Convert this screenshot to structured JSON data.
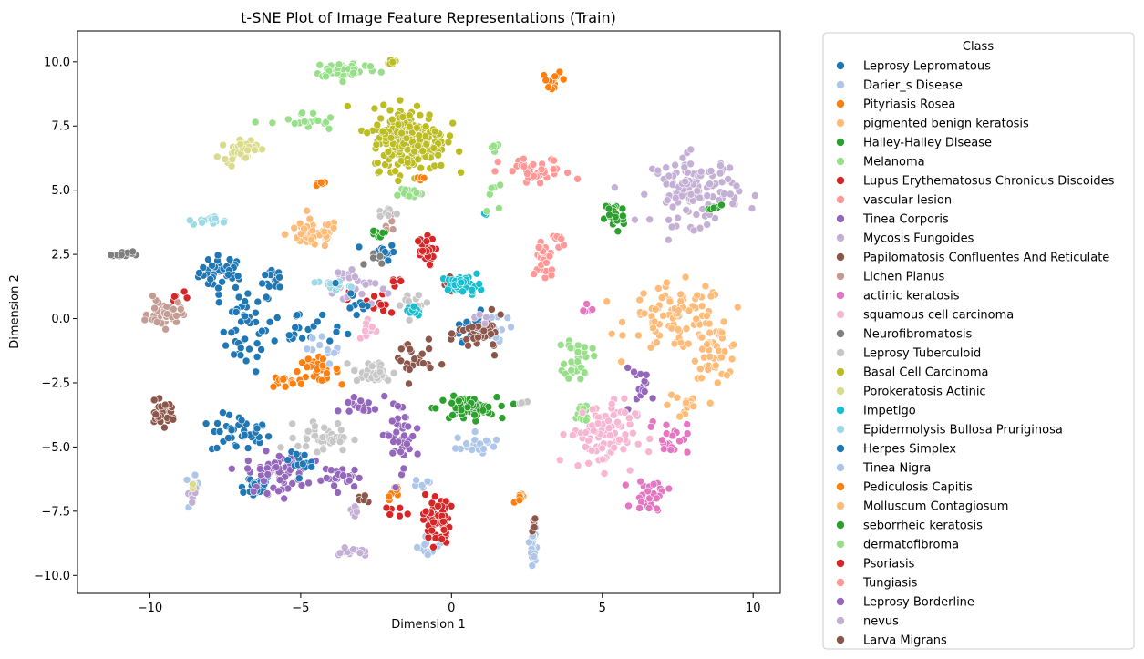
{
  "chart_data": {
    "type": "scatter",
    "title": "t-SNE Plot of Image Feature Representations (Train)",
    "xlabel": "Dimension 1",
    "ylabel": "Dimension 2",
    "xlim": [
      -12.4,
      10.9
    ],
    "ylim": [
      -10.7,
      11.2
    ],
    "xticks": [
      -10,
      -5,
      0,
      5,
      10
    ],
    "yticks": [
      -10.0,
      -7.5,
      -5.0,
      -2.5,
      0.0,
      2.5,
      5.0,
      7.5,
      10.0
    ],
    "xtick_labels": [
      "−10",
      "−5",
      "0",
      "5",
      "10"
    ],
    "ytick_labels": [
      "−10.0",
      "−7.5",
      "−5.0",
      "−2.5",
      "0.0",
      "2.5",
      "5.0",
      "7.5",
      "10.0"
    ],
    "grid": false,
    "legend_title": "Class",
    "legend_position": "outside-right",
    "series": [
      {
        "name": "Leprosy Lepromatous",
        "color": "#1f77b4",
        "clusters": [
          [
            -7.6,
            1.8,
            0.7,
            0.6,
            40
          ],
          [
            -6.8,
            -0.4,
            0.8,
            1.5,
            45
          ],
          [
            -7.0,
            -4.5,
            0.9,
            0.7,
            40
          ],
          [
            -6.6,
            -6.5,
            0.6,
            0.4,
            25
          ],
          [
            -5.8,
            1.6,
            0.4,
            0.5,
            15
          ],
          [
            -2.3,
            2.6,
            0.4,
            0.3,
            15
          ],
          [
            0.7,
            -0.3,
            0.6,
            0.5,
            20
          ]
        ]
      },
      {
        "name": "Darier_s Disease",
        "color": "#aec7e8",
        "clusters": [
          [
            0.8,
            -4.9,
            0.6,
            0.4,
            20
          ],
          [
            2.7,
            -8.8,
            0.08,
            0.7,
            25
          ],
          [
            -0.7,
            -8.8,
            0.4,
            0.5,
            15
          ],
          [
            -8.6,
            -6.6,
            0.2,
            0.4,
            8
          ],
          [
            1.6,
            -0.2,
            0.5,
            1.0,
            10
          ]
        ]
      },
      {
        "name": "Pityriasis Rosea",
        "color": "#ff7f0e",
        "clusters": [
          [
            3.4,
            9.3,
            0.35,
            0.25,
            14
          ],
          [
            -4.5,
            -2.0,
            0.7,
            0.4,
            30
          ],
          [
            2.3,
            -7.0,
            0.2,
            0.15,
            10
          ],
          [
            -1.9,
            -6.8,
            0.2,
            0.4,
            8
          ],
          [
            -4.4,
            5.3,
            0.3,
            0.2,
            6
          ]
        ]
      },
      {
        "name": "pigmented benign keratosis",
        "color": "#ffbb78",
        "clusters": [
          [
            -4.6,
            3.3,
            0.8,
            0.5,
            50
          ],
          [
            7.5,
            0.0,
            1.5,
            1.2,
            90
          ],
          [
            8.8,
            -1.3,
            0.7,
            0.9,
            40
          ]
        ]
      },
      {
        "name": "Hailey-Hailey Disease",
        "color": "#2ca02c",
        "clusters": [
          [
            0.5,
            -3.5,
            0.9,
            0.4,
            70
          ],
          [
            5.4,
            4.0,
            0.3,
            0.6,
            30
          ]
        ]
      },
      {
        "name": "Melanoma",
        "color": "#98df8a",
        "clusters": [
          [
            -3.5,
            9.7,
            1.0,
            0.3,
            45
          ],
          [
            -4.9,
            7.6,
            1.0,
            0.4,
            20
          ],
          [
            4.2,
            -1.5,
            0.4,
            0.8,
            35
          ],
          [
            -1.5,
            4.9,
            0.5,
            0.2,
            12
          ],
          [
            4.3,
            -3.7,
            0.3,
            0.5,
            15
          ]
        ]
      },
      {
        "name": "Lupus Erythematosus Chronicus Discoides",
        "color": "#d62728",
        "clusters": [
          [
            -0.9,
            2.6,
            0.3,
            0.5,
            30
          ],
          [
            -0.5,
            -7.8,
            0.4,
            0.9,
            55
          ],
          [
            -2.5,
            0.6,
            0.8,
            0.6,
            15
          ],
          [
            -9.0,
            0.7,
            0.3,
            0.3,
            5
          ]
        ]
      },
      {
        "name": "vascular lesion",
        "color": "#ff9896",
        "clusters": [
          [
            2.8,
            5.7,
            1.1,
            0.5,
            35
          ],
          [
            3.1,
            2.3,
            0.3,
            0.8,
            30
          ]
        ]
      },
      {
        "name": "Tinea Corporis",
        "color": "#9467bd",
        "clusters": [
          [
            -5.8,
            -6.0,
            0.9,
            0.7,
            60
          ],
          [
            -1.7,
            -4.5,
            0.6,
            1.2,
            40
          ],
          [
            -3.6,
            -6.2,
            0.6,
            0.4,
            25
          ],
          [
            6.3,
            -2.6,
            0.6,
            0.6,
            15
          ]
        ]
      },
      {
        "name": "Mycosis Fungoides",
        "color": "#c5b0d5",
        "clusters": [
          [
            8.1,
            5.0,
            1.3,
            1.2,
            120
          ],
          [
            -3.3,
            -9.1,
            0.4,
            0.15,
            15
          ],
          [
            -3.3,
            1.3,
            0.8,
            0.8,
            25
          ],
          [
            -8.6,
            -6.9,
            0.2,
            0.2,
            6
          ]
        ]
      },
      {
        "name": "Papilomatosis Confluentes And Reticulate",
        "color": "#8c564b",
        "clusters": [
          [
            -9.6,
            -3.7,
            0.4,
            0.4,
            35
          ],
          [
            1.0,
            -0.6,
            0.7,
            0.6,
            40
          ],
          [
            -1.3,
            -1.6,
            0.6,
            0.8,
            25
          ],
          [
            -0.1,
            1.2,
            0.3,
            0.3,
            10
          ]
        ]
      },
      {
        "name": "Lichen Planus",
        "color": "#c49c94",
        "clusters": [
          [
            -9.5,
            0.2,
            0.5,
            0.5,
            45
          ],
          [
            -2.0,
            3.8,
            0.3,
            0.3,
            6
          ]
        ]
      },
      {
        "name": "actinic keratosis",
        "color": "#e377c2",
        "clusters": [
          [
            6.6,
            -6.9,
            0.5,
            0.6,
            30
          ],
          [
            7.2,
            -4.6,
            0.6,
            0.6,
            20
          ],
          [
            4.5,
            0.4,
            0.3,
            0.2,
            5
          ]
        ]
      },
      {
        "name": "squamous cell carcinoma",
        "color": "#f7b6d2",
        "clusters": [
          [
            5.0,
            -4.5,
            1.0,
            1.2,
            90
          ],
          [
            -2.8,
            -0.6,
            0.3,
            0.6,
            10
          ]
        ]
      },
      {
        "name": "Neurofibromatosis",
        "color": "#7f7f7f",
        "clusters": [
          [
            -10.9,
            2.5,
            0.3,
            0.1,
            14
          ],
          [
            -2.6,
            2.2,
            0.3,
            0.3,
            6
          ]
        ]
      },
      {
        "name": "Leprosy Tuberculoid",
        "color": "#c7c7c7",
        "clusters": [
          [
            -2.6,
            -2.1,
            0.6,
            0.4,
            40
          ],
          [
            -4.2,
            -4.6,
            0.8,
            0.5,
            40
          ],
          [
            -2.1,
            4.1,
            0.3,
            0.2,
            8
          ],
          [
            -1.3,
            0.6,
            0.5,
            0.5,
            15
          ],
          [
            2.3,
            -3.2,
            0.2,
            0.2,
            4
          ]
        ]
      },
      {
        "name": "Basal Cell Carcinoma",
        "color": "#bcbd22",
        "clusters": [
          [
            -1.4,
            7.0,
            1.1,
            1.1,
            260
          ],
          [
            -2.0,
            10.0,
            0.2,
            0.1,
            10
          ]
        ]
      },
      {
        "name": "Porokeratosis Actinic",
        "color": "#dbdb8d",
        "clusters": [
          [
            -7.0,
            6.6,
            0.5,
            0.4,
            40
          ],
          [
            -8.6,
            -6.5,
            0.1,
            0.1,
            2
          ]
        ]
      },
      {
        "name": "Impetigo",
        "color": "#17becf",
        "clusters": [
          [
            0.4,
            1.3,
            0.5,
            0.3,
            45
          ],
          [
            -1.3,
            0.3,
            0.3,
            0.2,
            10
          ],
          [
            1.2,
            4.1,
            0.1,
            0.1,
            2
          ]
        ]
      },
      {
        "name": "Epidermolysis Bullosa Pruriginosa",
        "color": "#9edae5",
        "clusters": [
          [
            -8.0,
            3.8,
            0.5,
            0.15,
            18
          ],
          [
            -4.0,
            1.3,
            0.6,
            0.2,
            15
          ]
        ]
      },
      {
        "name": "Herpes Simplex",
        "color": "#1f77b4",
        "clusters": [
          [
            -4.8,
            -0.4,
            1.0,
            0.6,
            20
          ],
          [
            -5.1,
            -5.6,
            0.4,
            0.5,
            15
          ],
          [
            -3.3,
            0.6,
            0.5,
            0.4,
            10
          ]
        ]
      },
      {
        "name": "Tinea Nigra",
        "color": "#aec7e8",
        "clusters": [
          [
            -4.1,
            -1.2,
            0.6,
            0.4,
            12
          ],
          [
            -0.9,
            -6.4,
            0.3,
            0.2,
            6
          ]
        ]
      },
      {
        "name": "Pediculosis Capitis",
        "color": "#ff7f0e",
        "clusters": [
          [
            -5.6,
            -2.5,
            0.4,
            0.2,
            12
          ],
          [
            -1.0,
            5.5,
            0.2,
            0.2,
            4
          ]
        ]
      },
      {
        "name": "Molluscum Contagiosum",
        "color": "#ffbb78",
        "clusters": [
          [
            7.7,
            -3.4,
            0.5,
            0.6,
            15
          ]
        ]
      },
      {
        "name": "seborrheic keratosis",
        "color": "#2ca02c",
        "clusters": [
          [
            -2.5,
            3.3,
            0.3,
            0.2,
            8
          ],
          [
            8.8,
            4.3,
            0.3,
            0.3,
            6
          ]
        ]
      },
      {
        "name": "dermatofibroma",
        "color": "#98df8a",
        "clusters": [
          [
            1.2,
            5.0,
            0.3,
            0.5,
            6
          ],
          [
            1.4,
            6.6,
            0.3,
            0.4,
            5
          ]
        ]
      },
      {
        "name": "Psoriasis",
        "color": "#d62728",
        "clusters": [
          [
            -2.0,
            -7.5,
            0.3,
            0.2,
            6
          ],
          [
            -1.9,
            1.5,
            0.2,
            0.2,
            5
          ]
        ]
      },
      {
        "name": "Tungiasis",
        "color": "#ff9896",
        "clusters": [
          [
            3.5,
            3.0,
            0.3,
            0.3,
            6
          ]
        ]
      },
      {
        "name": "Leprosy Borderline",
        "color": "#9467bd",
        "clusters": [
          [
            -3.1,
            -3.4,
            0.6,
            0.4,
            15
          ]
        ]
      },
      {
        "name": "nevus",
        "color": "#c5b0d5",
        "clusters": [
          [
            -3.2,
            -7.5,
            0.3,
            0.3,
            6
          ],
          [
            1.0,
            0.0,
            0.3,
            0.3,
            5
          ]
        ]
      },
      {
        "name": "Larva Migrans",
        "color": "#8c564b",
        "clusters": [
          [
            2.7,
            -7.9,
            0.1,
            0.3,
            6
          ],
          [
            -2.9,
            -7.0,
            0.2,
            0.2,
            5
          ]
        ]
      }
    ]
  }
}
